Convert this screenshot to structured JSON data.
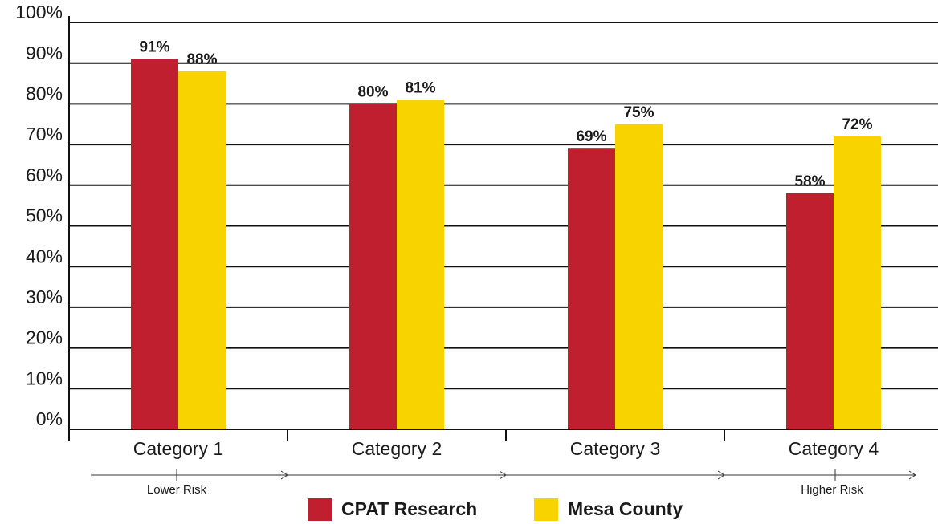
{
  "chart_data": {
    "type": "bar",
    "categories": [
      "Category 1",
      "Category 2",
      "Category 3",
      "Category 4"
    ],
    "series": [
      {
        "name": "CPAT Research",
        "color": "#c01f2f",
        "values": [
          91,
          80,
          69,
          58
        ],
        "value_labels": [
          "91%",
          "80%",
          "69%",
          "58%"
        ]
      },
      {
        "name": "Mesa County",
        "color": "#f9d300",
        "values": [
          88,
          81,
          75,
          72
        ],
        "value_labels": [
          "88%",
          "81%",
          "75%",
          "72%"
        ]
      }
    ],
    "ylim": [
      0,
      100
    ],
    "yticks": [
      {
        "value": 0,
        "label": "0%"
      },
      {
        "value": 10,
        "label": "10%"
      },
      {
        "value": 20,
        "label": "20%"
      },
      {
        "value": 30,
        "label": "30%"
      },
      {
        "value": 40,
        "label": "40%"
      },
      {
        "value": 50,
        "label": "50%"
      },
      {
        "value": 60,
        "label": "60%"
      },
      {
        "value": 70,
        "label": "70%"
      },
      {
        "value": 80,
        "label": "80%"
      },
      {
        "value": 90,
        "label": "90%"
      },
      {
        "value": 100,
        "label": "100%"
      }
    ],
    "grid": true,
    "annotations": [
      "Lower Risk",
      "Higher Risk"
    ],
    "legend": "bottom"
  }
}
